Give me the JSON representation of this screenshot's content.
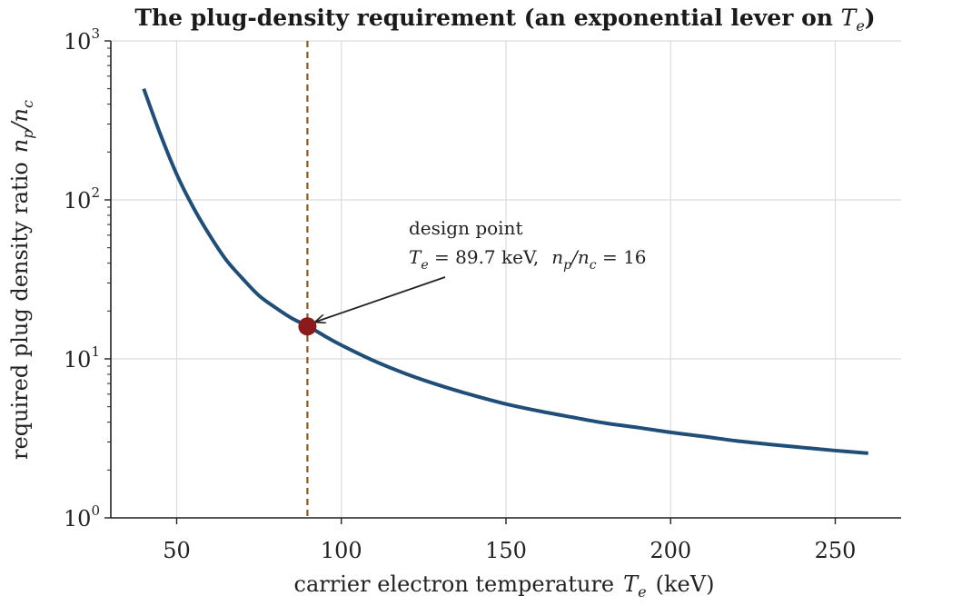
{
  "chart_data": {
    "type": "line",
    "title_prefix": "The plug-density requirement (an exponential lever on ",
    "title_math": "T",
    "title_math_sub": "e",
    "title_suffix": ")",
    "xlabel_text": "carrier electron temperature",
    "xlabel_math": "T",
    "xlabel_math_sub": "e",
    "xlabel_unit": "(keV)",
    "ylabel_text": "required plug density ratio",
    "ylabel_math": "n",
    "ylabel_math_sub": "p",
    "ylabel_math2": "/n",
    "ylabel_math2_sub": "c",
    "x_scale": "linear",
    "y_scale": "log",
    "xlim": [
      30,
      270
    ],
    "ylim": [
      1,
      1000
    ],
    "x_ticks": [
      50,
      100,
      150,
      200,
      250
    ],
    "x_tick_labels": [
      "50",
      "100",
      "150",
      "200",
      "250"
    ],
    "y_ticks": [
      1,
      10,
      100,
      1000
    ],
    "y_tick_base": "10",
    "y_tick_exponents": [
      "0",
      "1",
      "2",
      "3"
    ],
    "grid": true,
    "series": [
      {
        "color": "#1f4e79",
        "x": [
          40,
          45,
          50,
          55,
          60,
          65,
          70,
          75,
          80,
          85,
          90,
          95,
          100,
          110,
          120,
          130,
          140,
          150,
          160,
          170,
          180,
          190,
          200,
          210,
          220,
          230,
          240,
          250,
          260
        ],
        "y": [
          500,
          260,
          145,
          90,
          60,
          42,
          32,
          25,
          21,
          18,
          16,
          13.9,
          12.2,
          9.7,
          8.0,
          6.8,
          5.9,
          5.2,
          4.7,
          4.3,
          3.95,
          3.7,
          3.45,
          3.25,
          3.05,
          2.9,
          2.77,
          2.65,
          2.55
        ]
      }
    ],
    "vertical_line": {
      "x": 89.7,
      "color": "#8b5a1a",
      "style": "dashed"
    },
    "design_point": {
      "x": 89.7,
      "y": 16,
      "color": "#8b1a1a"
    },
    "annotation": {
      "line1": "design point",
      "line2_math_T": "T",
      "line2_math_T_sub": "e",
      "line2_eq1": " = 89.7 ",
      "line2_unit": "keV,",
      "line2_math_n": "n",
      "line2_math_n_sub": "p",
      "line2_math_n2": "/n",
      "line2_math_n2_sub": "c",
      "line2_eq2": " = 16",
      "text_anchor_data": {
        "x": 131,
        "y": 34
      }
    }
  }
}
